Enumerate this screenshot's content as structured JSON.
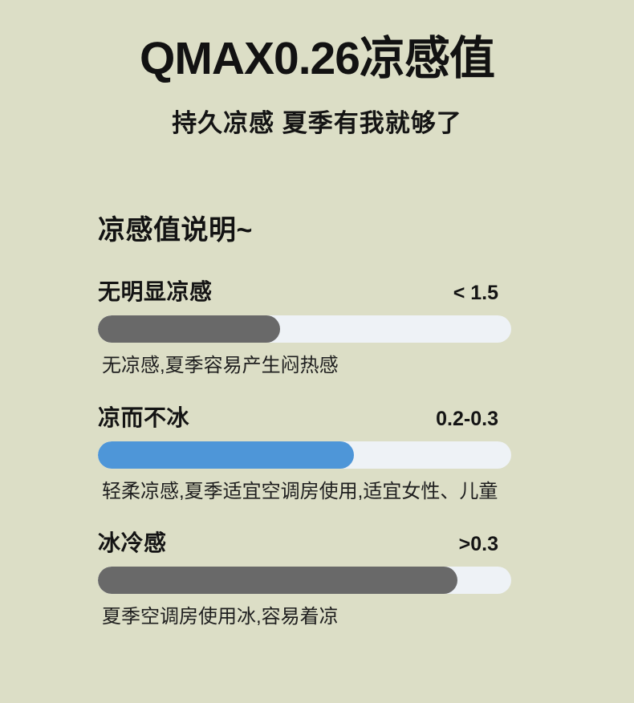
{
  "header": {
    "title": "QMAX0.26凉感值",
    "subtitle": "持久凉感 夏季有我就够了"
  },
  "section": {
    "heading": "凉感值说明~"
  },
  "colors": {
    "background": "#dcdec6",
    "track": "#eef2f6",
    "gray_fill": "#696969",
    "blue_fill": "#4e96d8",
    "text": "#141414"
  },
  "chart_data": {
    "type": "bar",
    "orientation": "horizontal",
    "title": "凉感值说明~",
    "legend": false,
    "grid": false,
    "items": [
      {
        "label": "无明显凉感",
        "value_label": "< 1.5",
        "fill_percent": 44,
        "fill_color": "#696969",
        "caption": "无凉感,夏季容易产生闷热感"
      },
      {
        "label": "凉而不冰",
        "value_label": "0.2-0.3",
        "fill_percent": 62,
        "fill_color": "#4e96d8",
        "caption": "轻柔凉感,夏季适宜空调房使用,适宜女性、儿童"
      },
      {
        "label": "冰冷感",
        "value_label": ">0.3",
        "fill_percent": 87,
        "fill_color": "#696969",
        "caption": "夏季空调房使用冰,容易着凉"
      }
    ]
  }
}
